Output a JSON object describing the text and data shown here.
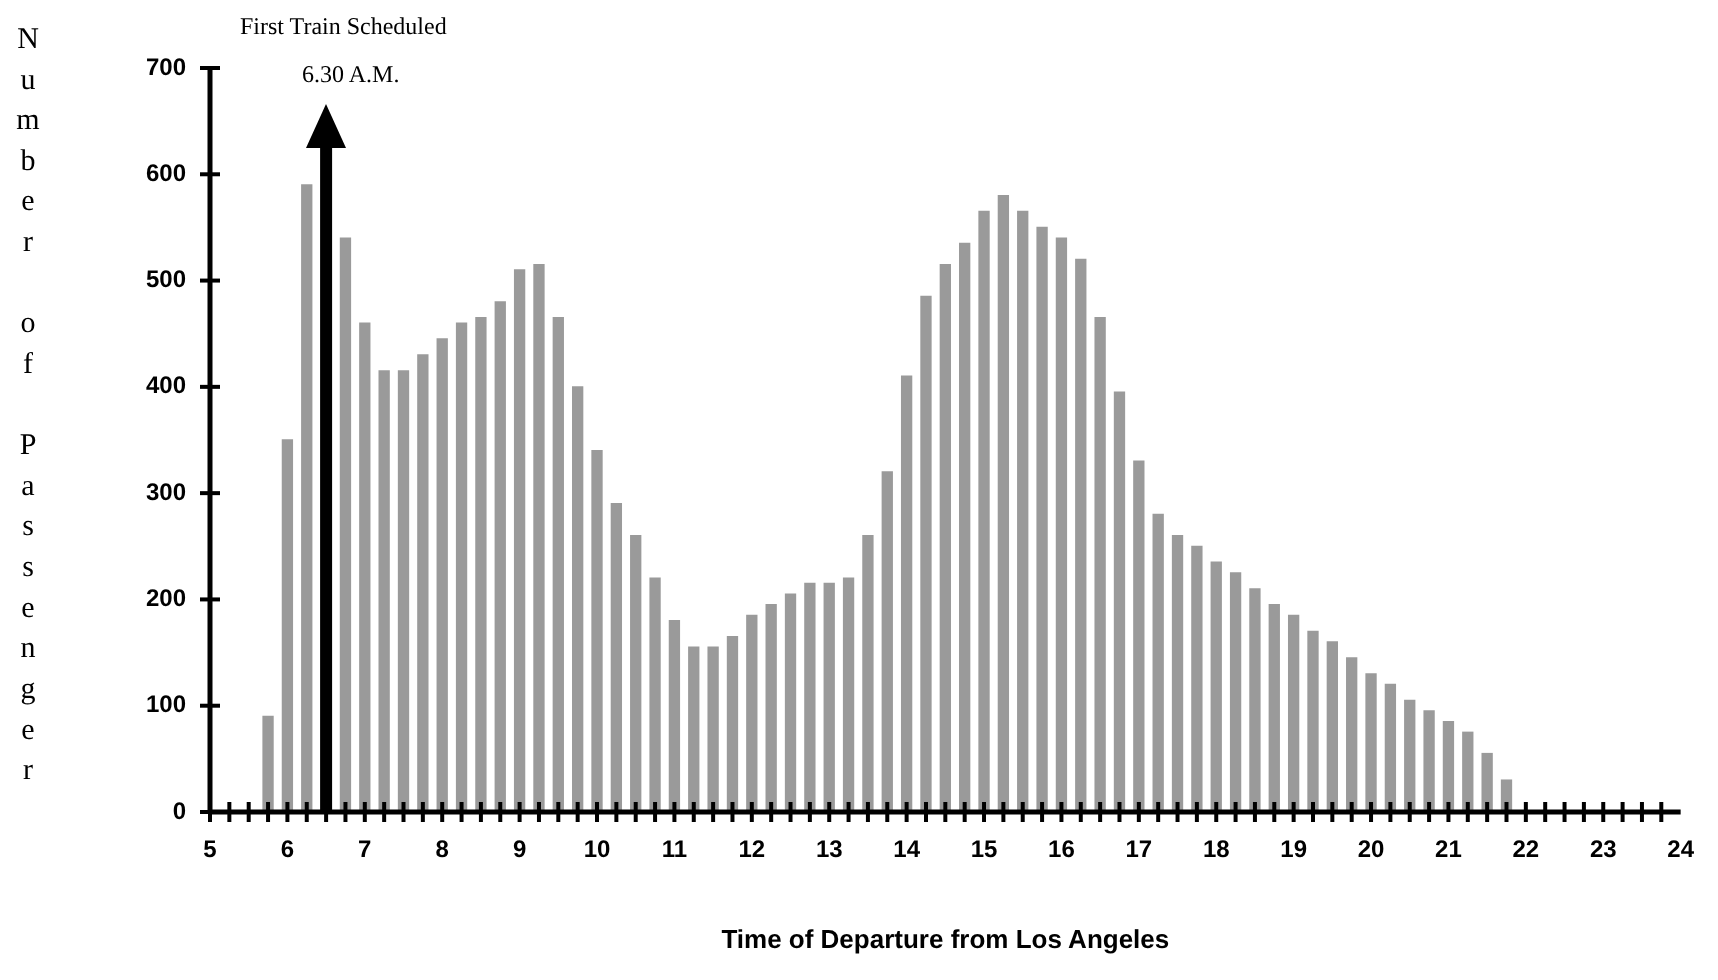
{
  "chart_data": {
    "type": "bar",
    "xlabel": "Time of Departure from Los Angeles",
    "ylabel": "Number of Passenger",
    "x": [
      5.75,
      6,
      6.25,
      6.5,
      6.75,
      7,
      7.25,
      7.5,
      7.75,
      8,
      8.25,
      8.5,
      8.75,
      9,
      9.25,
      9.5,
      9.75,
      10,
      10.25,
      10.5,
      10.75,
      11,
      11.25,
      11.5,
      11.75,
      12,
      12.25,
      12.5,
      12.75,
      13,
      13.25,
      13.5,
      13.75,
      14,
      14.25,
      14.5,
      14.75,
      15,
      15.25,
      15.5,
      15.75,
      16,
      16.25,
      16.5,
      16.75,
      17,
      17.25,
      17.5,
      17.75,
      18,
      18.25,
      18.5,
      18.75,
      19,
      19.25,
      19.5,
      19.75,
      20,
      20.25,
      20.5,
      20.75,
      21,
      21.25,
      21.5,
      21.75
    ],
    "values": [
      90,
      350,
      590,
      null,
      540,
      460,
      415,
      415,
      430,
      445,
      460,
      465,
      480,
      510,
      515,
      465,
      400,
      340,
      290,
      260,
      220,
      180,
      155,
      155,
      165,
      185,
      195,
      205,
      215,
      215,
      220,
      260,
      320,
      410,
      485,
      515,
      535,
      565,
      580,
      565,
      550,
      540,
      520,
      465,
      395,
      330,
      280,
      260,
      250,
      235,
      225,
      210,
      195,
      185,
      170,
      160,
      145,
      130,
      120,
      105,
      95,
      85,
      75,
      55,
      30
    ],
    "color": "#9a9a9a",
    "xlim": [
      5,
      24
    ],
    "xticks": [
      5,
      6,
      7,
      8,
      9,
      10,
      11,
      12,
      13,
      14,
      15,
      16,
      17,
      18,
      19,
      20,
      21,
      22,
      23,
      24
    ],
    "ylim": [
      0,
      700
    ],
    "yticks": [
      0,
      100,
      200,
      300,
      400,
      500,
      600,
      700
    ],
    "grid": false,
    "legend": false,
    "ref_lines": [
      {
        "axis": "x",
        "value": 6.5,
        "label": "6.30 A.M."
      }
    ],
    "annotations": [
      "First Train Scheduled"
    ]
  }
}
